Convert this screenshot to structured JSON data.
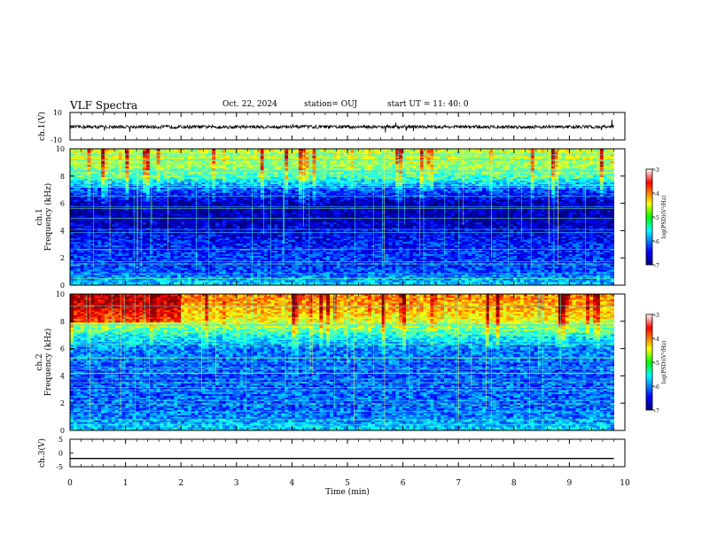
{
  "header": {
    "title": "VLF Spectra",
    "date": "Oct. 22, 2024",
    "station": "station= OUJ",
    "start": "start  UT =   11: 40: 0"
  },
  "chart_data": [
    {
      "type": "line",
      "panel": "ch1-waveform",
      "ylabel": "ch.1(V)",
      "ylim": [
        -10,
        10
      ],
      "yticks": [
        "10",
        "-10"
      ],
      "x": [
        0,
        9.8
      ],
      "values": [
        -0.5,
        -0.5
      ],
      "line_color": "#000000",
      "note_values": "dense noisy trace near -0.5 V with occasional spikes"
    },
    {
      "type": "heatmap",
      "panel": "ch1-spectrogram",
      "ylabel": "ch.1\nFrequency (kHz)",
      "xlim": [
        0,
        9.8
      ],
      "ylim": [
        0,
        10
      ],
      "yticks": [
        "0",
        "2",
        "4",
        "6",
        "8",
        "10"
      ],
      "colorbar": {
        "label": "log(PSD)(V²/Hz)",
        "ticks": [
          "-3",
          "-4",
          "-5",
          "-6",
          "-7"
        ],
        "range": [
          -7,
          -3
        ]
      },
      "profile_kHz": [
        0,
        1,
        2,
        3,
        4,
        5,
        6,
        7,
        8,
        9,
        10
      ],
      "profile_logpsd": [
        -5.6,
        -6.2,
        -6.3,
        -6.4,
        -6.6,
        -6.8,
        -6.8,
        -6.2,
        -5.2,
        -4.8,
        -4.7
      ]
    },
    {
      "type": "heatmap",
      "panel": "ch2-spectrogram",
      "ylabel": "ch.2\nFrequency (kHz)",
      "xlim": [
        0,
        9.8
      ],
      "ylim": [
        0,
        10
      ],
      "yticks": [
        "0",
        "2",
        "4",
        "6",
        "8",
        "10"
      ],
      "colorbar": {
        "label": "log(PSD)(V²/Hz)",
        "ticks": [
          "-3",
          "-4",
          "-5",
          "-6",
          "-7"
        ],
        "range": [
          -7,
          -3
        ]
      },
      "profile_kHz": [
        0,
        1,
        2,
        3,
        4,
        5,
        6,
        7,
        8,
        9,
        10
      ],
      "profile_logpsd": [
        -5.6,
        -6.0,
        -6.1,
        -6.1,
        -6.2,
        -6.1,
        -6.0,
        -5.4,
        -4.6,
        -4.2,
        -4.0
      ]
    },
    {
      "type": "line",
      "panel": "ch3-waveform",
      "ylabel": "ch.3(V)",
      "ylim": [
        -5,
        5
      ],
      "yticks": [
        "5",
        "0",
        "-5"
      ],
      "x": [
        0,
        9.8
      ],
      "values": [
        -2,
        -2
      ],
      "line_color": "#000000"
    }
  ],
  "xaxis": {
    "label": "Time (min)",
    "range": [
      0,
      10
    ],
    "ticks": [
      "0",
      "1",
      "2",
      "3",
      "4",
      "5",
      "6",
      "7",
      "8",
      "9",
      "10"
    ]
  }
}
